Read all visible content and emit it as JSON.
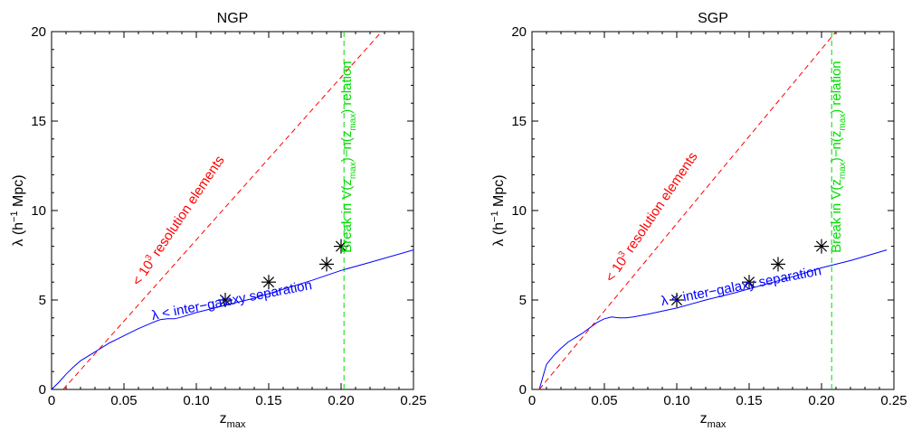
{
  "chart_data": [
    {
      "type": "line",
      "title": "NGP",
      "xlabel": "z",
      "xlabel_sub": "max",
      "ylabel": "λ (h",
      "ylabel_sup": "−1",
      "ylabel_tail": " Mpc)",
      "xlim": [
        0,
        0.25
      ],
      "ylim": [
        0,
        20
      ],
      "xticks": [
        0,
        0.05,
        0.1,
        0.15,
        0.2,
        0.25
      ],
      "xtick_labels": [
        "0",
        "0.05",
        "0.10",
        "0.15",
        "0.20",
        "0.25"
      ],
      "yticks": [
        0,
        5,
        10,
        15,
        20
      ],
      "ytick_labels": [
        "0",
        "5",
        "10",
        "15",
        "20"
      ],
      "series": [
        {
          "name": "λ < inter−galaxy separation",
          "style": "solid",
          "color": "#0000ff",
          "x": [
            0,
            0.005,
            0.01,
            0.015,
            0.02,
            0.03,
            0.04,
            0.05,
            0.06,
            0.07,
            0.075,
            0.08,
            0.085,
            0.09,
            0.1,
            0.12,
            0.14,
            0.16,
            0.18,
            0.2,
            0.22,
            0.25
          ],
          "y": [
            0,
            0.4,
            0.85,
            1.25,
            1.6,
            2.1,
            2.6,
            3.0,
            3.4,
            3.75,
            3.9,
            3.95,
            3.95,
            4.05,
            4.3,
            4.7,
            5.1,
            5.6,
            6.1,
            6.65,
            7.1,
            7.8
          ]
        },
        {
          "name": "< 10³ resolution elements",
          "style": "dashed",
          "color": "#ff0000",
          "x": [
            0.008,
            0.228
          ],
          "y": [
            0,
            20
          ]
        }
      ],
      "points": {
        "marker": "asterisk",
        "color": "#000000",
        "x": [
          0.12,
          0.15,
          0.19,
          0.2
        ],
        "y": [
          5,
          6,
          7,
          8
        ]
      },
      "vline": {
        "x": 0.202,
        "color": "#00dd00",
        "style": "dashed"
      },
      "annotations": {
        "blue_text": "λ < inter−galaxy separation",
        "red_prefix": "< 10",
        "red_sup": "3",
        "red_suffix": " resolution elements",
        "green_a": "Break in V(z",
        "green_b": "max",
        "green_c": ")−n(z",
        "green_d": "max",
        "green_e": ") relation"
      }
    },
    {
      "type": "line",
      "title": "SGP",
      "xlabel": "z",
      "xlabel_sub": "max",
      "ylabel": "λ (h",
      "ylabel_sup": "−1",
      "ylabel_tail": " Mpc)",
      "xlim": [
        0,
        0.25
      ],
      "ylim": [
        0,
        20
      ],
      "xticks": [
        0,
        0.05,
        0.1,
        0.15,
        0.2,
        0.25
      ],
      "xtick_labels": [
        "0",
        "0.05",
        "0.10",
        "0.15",
        "0.20",
        "0.25"
      ],
      "yticks": [
        0,
        5,
        10,
        15,
        20
      ],
      "ytick_labels": [
        "0",
        "5",
        "10",
        "15",
        "20"
      ],
      "series": [
        {
          "name": "λ < inter−galaxy separation",
          "style": "solid",
          "color": "#0000ff",
          "x": [
            0.005,
            0.01,
            0.015,
            0.02,
            0.025,
            0.03,
            0.035,
            0.04,
            0.045,
            0.05,
            0.055,
            0.06,
            0.065,
            0.07,
            0.08,
            0.1,
            0.12,
            0.14,
            0.16,
            0.18,
            0.2,
            0.22,
            0.245
          ],
          "y": [
            0,
            1.4,
            1.9,
            2.3,
            2.65,
            2.9,
            3.15,
            3.45,
            3.75,
            3.95,
            4.05,
            4.0,
            4.0,
            4.05,
            4.2,
            4.55,
            5.0,
            5.4,
            5.85,
            6.3,
            6.8,
            7.2,
            7.8
          ]
        },
        {
          "name": "< 10³ resolution elements",
          "style": "dashed",
          "color": "#ff0000",
          "x": [
            0.005,
            0.21
          ],
          "y": [
            0,
            20
          ]
        }
      ],
      "points": {
        "marker": "asterisk",
        "color": "#000000",
        "x": [
          0.1,
          0.15,
          0.17,
          0.2
        ],
        "y": [
          5,
          6,
          7,
          8
        ]
      },
      "vline": {
        "x": 0.207,
        "color": "#00dd00",
        "style": "dashed"
      },
      "annotations": {
        "blue_text": "λ < inter−galaxy separation",
        "red_prefix": "< 10",
        "red_sup": "3",
        "red_suffix": " resolution elements",
        "green_a": "Break in V(z",
        "green_b": "max",
        "green_c": ")−n(z",
        "green_d": "max",
        "green_e": ") relation"
      }
    }
  ]
}
